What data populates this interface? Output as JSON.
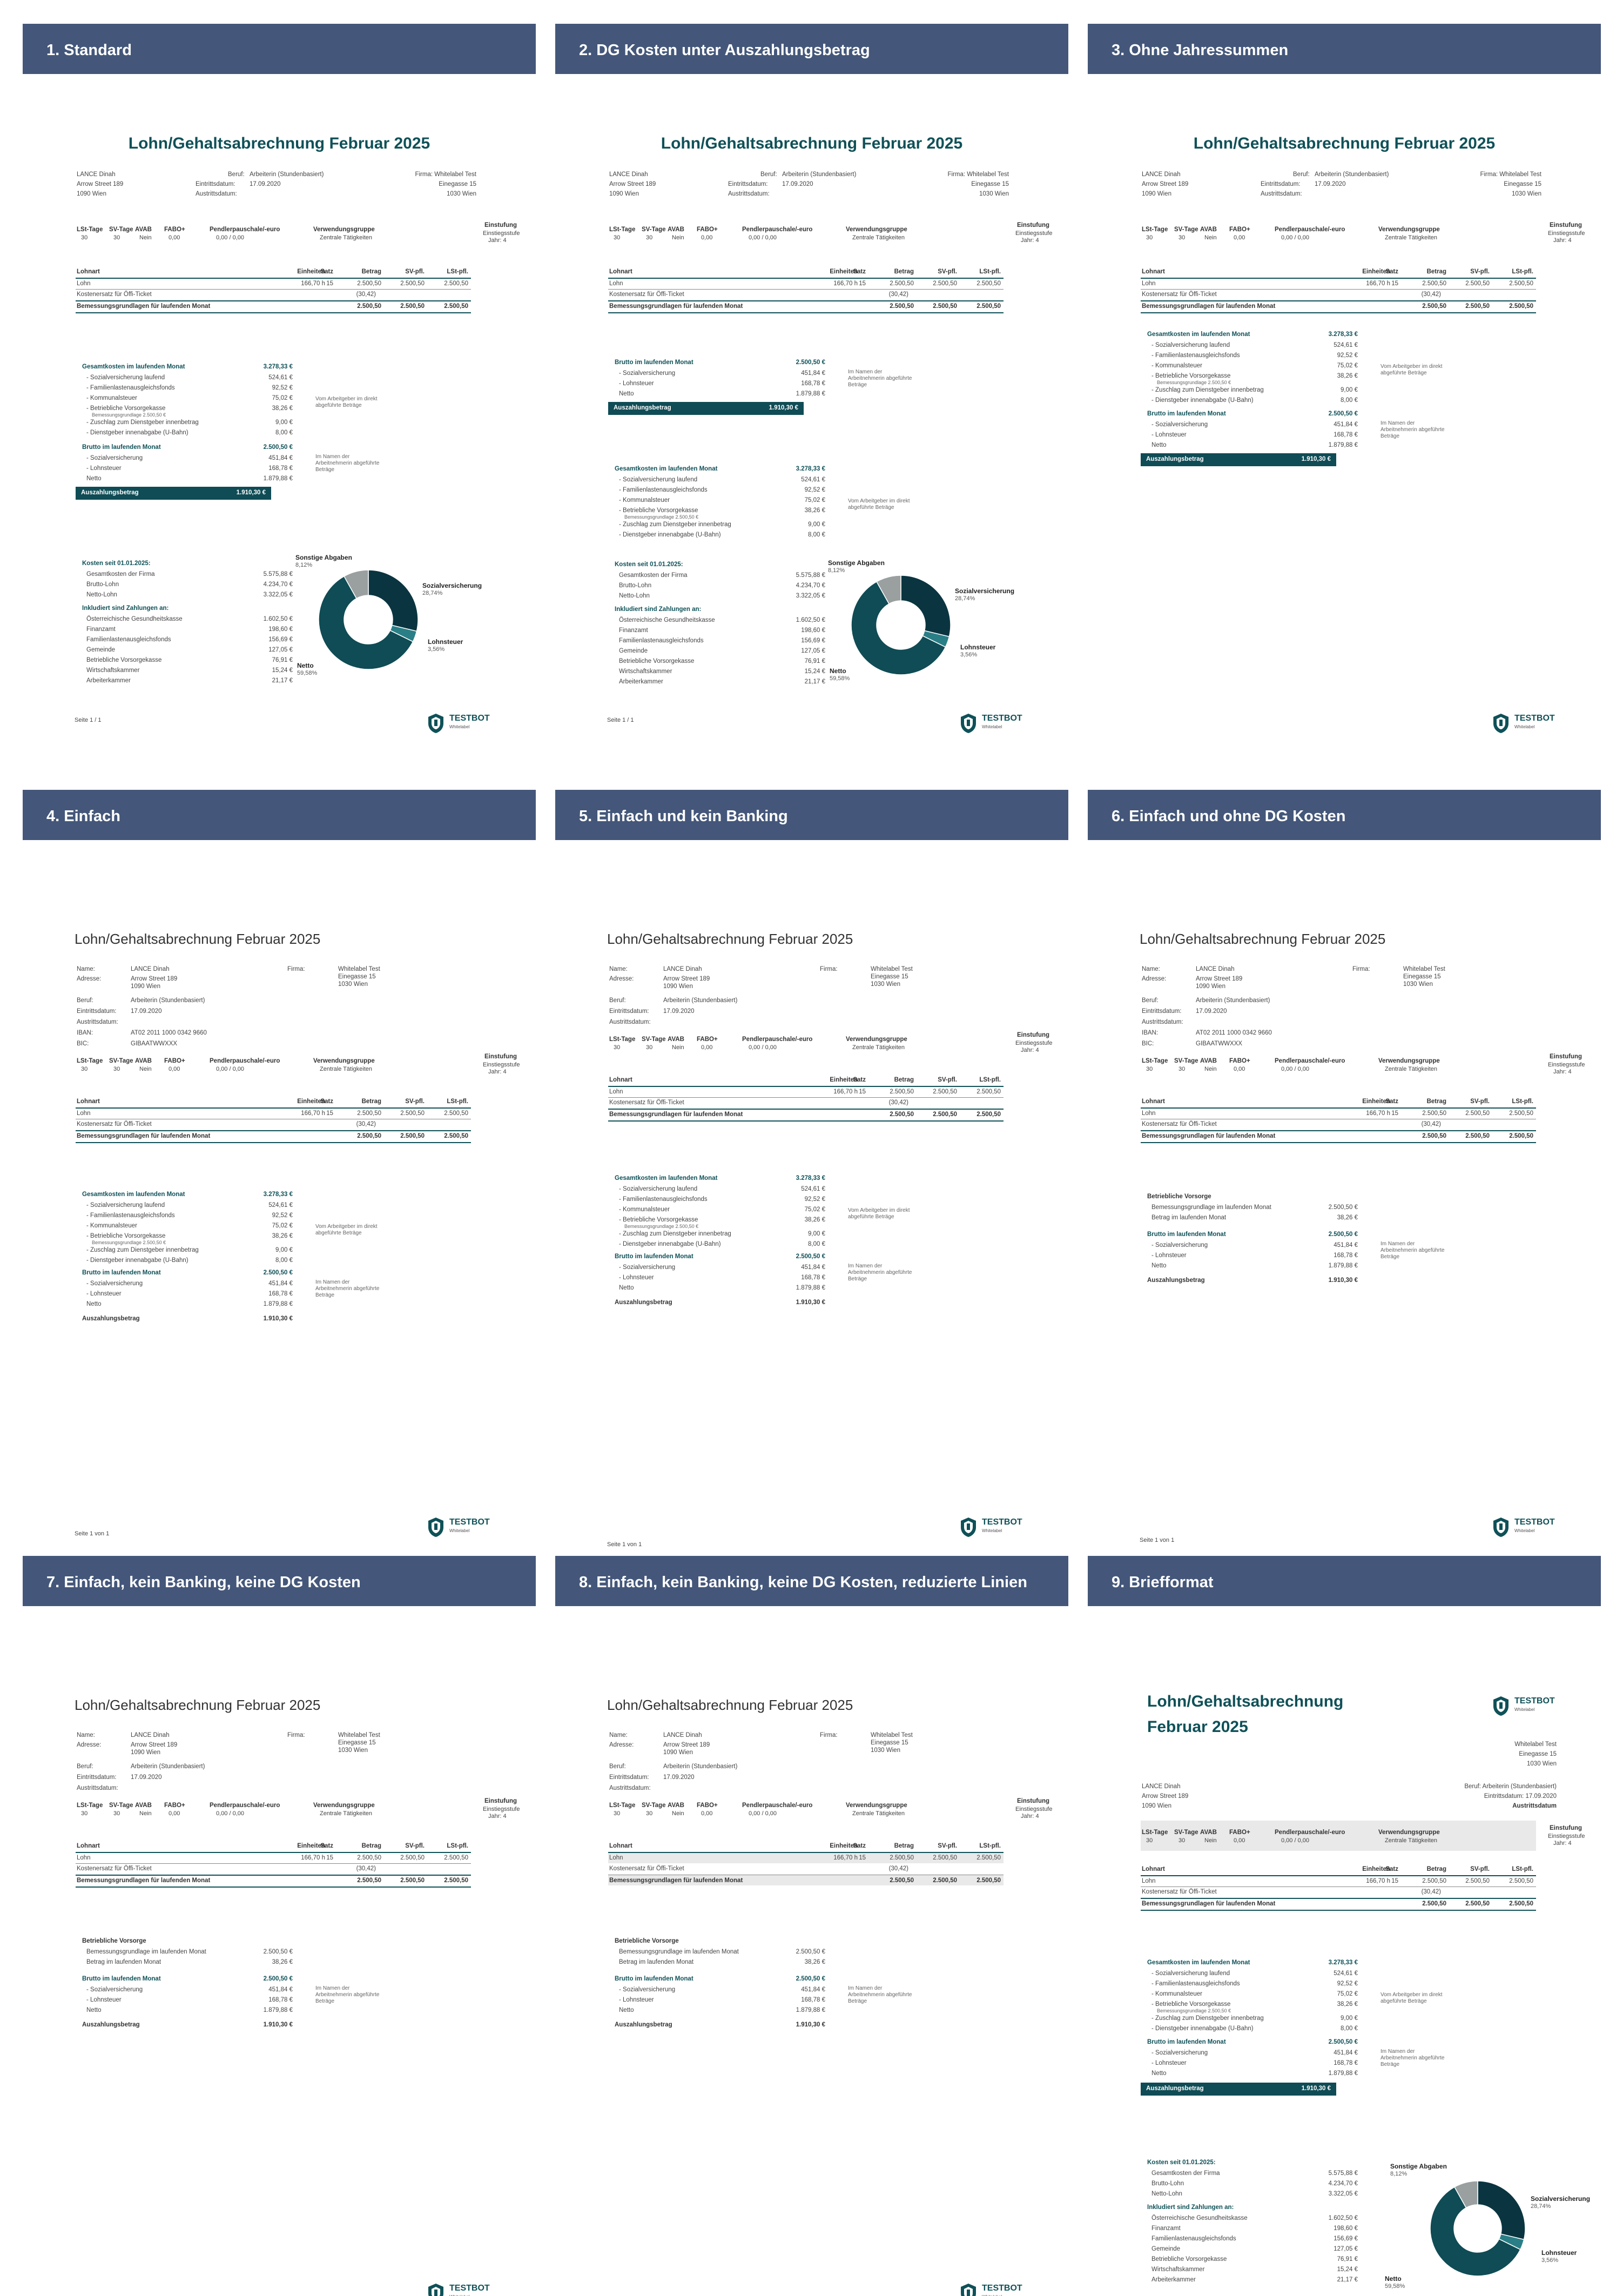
{
  "panels": [
    {
      "label": "1. Standard"
    },
    {
      "label": "2. DG Kosten unter Auszahlungsbetrag"
    },
    {
      "label": "3. Ohne Jahressummen"
    },
    {
      "label": "4. Einfach"
    },
    {
      "label": "5. Einfach und kein Banking"
    },
    {
      "label": "6. Einfach und ohne DG Kosten"
    },
    {
      "label": "7. Einfach, kein Banking, keine DG Kosten"
    },
    {
      "label": "8. Einfach, kein Banking, keine DG Kosten, reduzierte Linien"
    },
    {
      "label": "9. Briefformat"
    }
  ],
  "doc": {
    "title": "Lohn/Gehaltsabrechnung Februar 2025",
    "title_l1": "Lohn/Gehaltsabrechnung",
    "title_l2": "Februar 2025",
    "name": "LANCE Dinah",
    "street": "Arrow Street 189",
    "city": "1090 Wien",
    "beruf_lbl": "Beruf:",
    "beruf": "Arbeiterin (Stundenbasiert)",
    "beruf_full": "Beruf: Arbeiterin (Stundenbasiert)",
    "eintritt_lbl": "Eintrittsdatum:",
    "eintritt": "17.09.2020",
    "eintritt_full": "Eintrittsdatum: 17.09.2020",
    "austritt_lbl": "Austrittsdatum:",
    "austritt_b": "Austrittsdatum",
    "firma_lbl": "Firma:",
    "firma": "Whitelabel Test",
    "firma_full": "Firma: Whitelabel Test",
    "firma_street": "Einegasse 15",
    "firma_city": "1030 Wien",
    "name_lbl": "Name:",
    "adr_lbl": "Adresse:",
    "iban_lbl": "IBAN:",
    "iban": "AT02 2011 1000 0342 9660",
    "bic_lbl": "BIC:",
    "bic": "GIBAATWWXXX",
    "params_h": [
      "LSt-Tage",
      "SV-Tage",
      "AVAB",
      "FABO+",
      "Pendlerpauschale/-euro",
      "Verwendungsgruppe",
      "Einstufung"
    ],
    "params_v": [
      "30",
      "30",
      "Nein",
      "0,00",
      "0,00 / 0,00",
      "Zentrale Tätigkeiten",
      "Einstiegsstufe"
    ],
    "einstufung_2": "Jahr: 4",
    "lohn_h": [
      "Lohnart",
      "Einheiten",
      "Satz",
      "Betrag",
      "SV-pfl.",
      "LSt-pfl."
    ],
    "lohn_r1": [
      "Lohn",
      "166,70 h",
      "15",
      "2.500,50",
      "2.500,50",
      "2.500,50"
    ],
    "lohn_r2": [
      "Kostenersatz für Öffi-Ticket",
      "(30,42)"
    ],
    "lohn_sum": [
      "Bemessungsgrundlagen für laufenden Monat",
      "2.500,50",
      "2.500,50",
      "2.500,50"
    ],
    "gk": {
      "title": "Gesamtkosten im laufenden Monat",
      "total": "3.278,33 €",
      "items": [
        [
          "- Sozialversicherung laufend",
          "524,61 €"
        ],
        [
          "- Familienlastenausgleichsfonds",
          "92,52 €"
        ],
        [
          "- Kommunalsteuer",
          "75,02 €"
        ],
        [
          "- Betriebliche Vorsorgekasse",
          "38,26 €"
        ],
        [
          "- Zuschlag zum Dienstgeber innenbetrag",
          "9,00 €"
        ],
        [
          "- Dienstgeber innenabgabe (U-Bahn)",
          "8,00 €"
        ]
      ],
      "bmg": "Bemessungsgrundlage 2.500,50 €",
      "note": "Vom Arbeitgeber im direkt abgeführte Beträge"
    },
    "brutto": {
      "title": "Brutto im laufenden Monat",
      "total": "2.500,50 €",
      "items": [
        [
          "- Sozialversicherung",
          "451,84 €"
        ],
        [
          "- Lohnsteuer",
          "168,78 €"
        ],
        [
          "Netto",
          "1.879,88 €"
        ]
      ],
      "note": "Im Namen der Arbeitnehmerin abgeführte Beträge"
    },
    "ausz": {
      "label": "Auszahlungsbetrag",
      "value": "1.910,30 €"
    },
    "bv": {
      "title": "Betriebliche Vorsorge",
      "r1": [
        "Bemessungsgrundlage im laufenden Monat",
        "2.500,50 €"
      ],
      "r2": [
        "Betrag im laufenden Monat",
        "38,26 €"
      ]
    },
    "ks": {
      "title": "Kosten seit 01.01.2025:",
      "items": [
        [
          "Gesamtkosten der Firma",
          "5.575,88 €"
        ],
        [
          "Brutto-Lohn",
          "4.234,70 €"
        ],
        [
          "Netto-Lohn",
          "3.322,05 €"
        ]
      ]
    },
    "inkl": {
      "title": "Inkludiert sind Zahlungen an:",
      "items": [
        [
          "Österreichische Gesundheitskasse",
          "1.602,50 €"
        ],
        [
          "Finanzamt",
          "198,60 €"
        ],
        [
          "Familienlastenausgleichsfonds",
          "156,69 €"
        ],
        [
          "Gemeinde",
          "127,05 €"
        ],
        [
          "Betriebliche Vorsorgekasse",
          "76,91 €"
        ],
        [
          "Wirtschaftskammer",
          "15,24 €"
        ],
        [
          "Arbeiterkammer",
          "21,17 €"
        ]
      ]
    },
    "logo": {
      "name": "TESTBOT",
      "sub": "Whitelabel"
    },
    "seite1": "Seite 1 / 1",
    "seite2": "Seite 1 von 1"
  },
  "chart_data": {
    "type": "pie",
    "variant": "donut",
    "categories": [
      "Sozialversicherung",
      "Lohnsteuer",
      "Netto",
      "Sonstige Abgaben"
    ],
    "values": [
      28.74,
      3.56,
      59.58,
      8.12
    ],
    "labels": [
      "28,74%",
      "3,56%",
      "59,58%",
      "8,12%"
    ],
    "colors": [
      "#0a3540",
      "#2a7f86",
      "#0f4c55",
      "#9aa0a0"
    ]
  }
}
